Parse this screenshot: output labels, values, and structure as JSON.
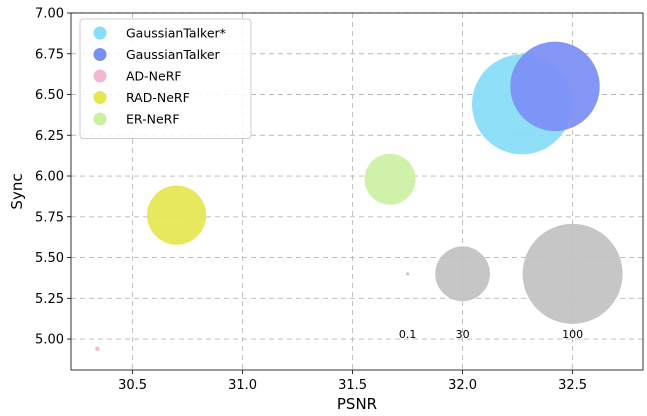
{
  "chart_data": {
    "type": "scatter",
    "xlabel": "PSNR",
    "ylabel": "Sync",
    "xlim": [
      30.22,
      32.82
    ],
    "ylim": [
      4.81,
      7.0
    ],
    "xticks": [
      30.5,
      31.0,
      31.5,
      32.0,
      32.5
    ],
    "xtick_labels": [
      "30.5",
      "31.0",
      "31.5",
      "32.0",
      "32.5"
    ],
    "yticks": [
      5.0,
      5.25,
      5.5,
      5.75,
      6.0,
      6.25,
      6.5,
      6.75,
      7.0
    ],
    "ytick_labels": [
      "5.00",
      "5.25",
      "5.50",
      "5.75",
      "6.00",
      "6.25",
      "6.50",
      "6.75",
      "7.00"
    ],
    "grid": true,
    "legend_position": "top-left",
    "series": [
      {
        "name": "GaussianTalker*",
        "color": "#87dcf7",
        "points": [
          {
            "x": 32.27,
            "y": 6.44,
            "size": 100
          }
        ]
      },
      {
        "name": "GaussianTalker",
        "color": "#7b8ef5",
        "points": [
          {
            "x": 32.42,
            "y": 6.55,
            "size": 80
          }
        ]
      },
      {
        "name": "AD-NeRF",
        "color": "#f4b6cf",
        "points": [
          {
            "x": 30.34,
            "y": 4.94,
            "size": 0.2
          }
        ]
      },
      {
        "name": "RAD-NeRF",
        "color": "#e6e650",
        "points": [
          {
            "x": 30.7,
            "y": 5.76,
            "size": 35
          }
        ]
      },
      {
        "name": "ER-NeRF",
        "color": "#ccf0a2",
        "points": [
          {
            "x": 31.67,
            "y": 5.98,
            "size": 26
          }
        ]
      }
    ],
    "size_reference": {
      "color": "#c0c0c0",
      "items": [
        {
          "label": "0.1",
          "value": 0.1,
          "x": 31.75,
          "y": 5.4
        },
        {
          "label": "30",
          "value": 30,
          "x": 32.0,
          "y": 5.4
        },
        {
          "label": "100",
          "value": 100,
          "x": 32.5,
          "y": 5.4
        }
      ],
      "label_y": 5.03
    }
  }
}
